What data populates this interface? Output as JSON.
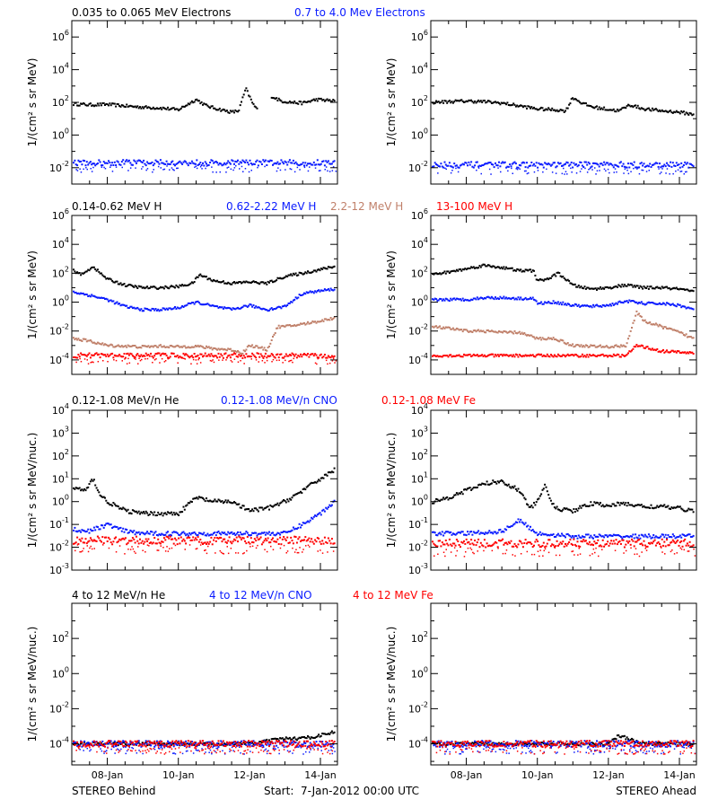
{
  "footer": {
    "left": "STEREO Behind",
    "center": "Start:  7-Jan-2012 00:00 UTC",
    "right": "STEREO Ahead"
  },
  "colors": {
    "black": "#000000",
    "blue": "#0a1bff",
    "tan": "#c0806a",
    "red": "#ff0000"
  },
  "x_axis": {
    "range": [
      0,
      7.48
    ],
    "ticks": [
      {
        "v": 1,
        "label": "08-Jan"
      },
      {
        "v": 3,
        "label": "10-Jan"
      },
      {
        "v": 5,
        "label": "12-Jan"
      },
      {
        "v": 7,
        "label": "14-Jan"
      }
    ]
  },
  "rows": [
    {
      "ylabel": "1/(cm² s sr MeV)",
      "yrange": [
        -3,
        7
      ],
      "yticks": [
        {
          "e": -2,
          "l": "-2"
        },
        {
          "e": 0,
          "l": "0"
        },
        {
          "e": 2,
          "l": "2"
        },
        {
          "e": 4,
          "l": "4"
        },
        {
          "e": 6,
          "l": "6"
        }
      ],
      "legend": [
        {
          "text": "0.035 to 0.065 MeV Electrons",
          "color": "#000000"
        },
        {
          "text": "0.7 to 4.0 Mev Electrons",
          "color": "#0a1bff"
        }
      ]
    },
    {
      "ylabel": "1/(cm² s sr MeV)",
      "yrange": [
        -5,
        6
      ],
      "yticks": [
        {
          "e": -4,
          "l": "-4"
        },
        {
          "e": -2,
          "l": "-2"
        },
        {
          "e": 0,
          "l": "0"
        },
        {
          "e": 2,
          "l": "2"
        },
        {
          "e": 4,
          "l": "4"
        },
        {
          "e": 6,
          "l": "6"
        }
      ],
      "legend": [
        {
          "text": "0.14-0.62 MeV H",
          "color": "#000000"
        },
        {
          "text": "0.62-2.22 MeV H",
          "color": "#0a1bff"
        },
        {
          "text": "2.2-12 MeV H",
          "color": "#c0806a"
        },
        {
          "text": "13-100 MeV H",
          "color": "#ff0000"
        }
      ]
    },
    {
      "ylabel": "1/(cm² s sr MeV/nuc.)",
      "yrange": [
        -3,
        4
      ],
      "yticks": [
        {
          "e": -3,
          "l": "-3"
        },
        {
          "e": -2,
          "l": "-2"
        },
        {
          "e": -1,
          "l": "-1"
        },
        {
          "e": 0,
          "l": "0"
        },
        {
          "e": 1,
          "l": "1"
        },
        {
          "e": 2,
          "l": "2"
        },
        {
          "e": 3,
          "l": "3"
        },
        {
          "e": 4,
          "l": "4"
        }
      ],
      "legend": [
        {
          "text": "0.12-1.08 MeV/n He",
          "color": "#000000"
        },
        {
          "text": "0.12-1.08 MeV/n CNO",
          "color": "#0a1bff"
        },
        {
          "text": "0.12-1.08 MeV Fe",
          "color": "#ff0000"
        }
      ]
    },
    {
      "ylabel": "1/(cm² s sr MeV/nuc.)",
      "yrange": [
        -5.2,
        4
      ],
      "yticks": [
        {
          "e": -4,
          "l": "-4"
        },
        {
          "e": -2,
          "l": "-2"
        },
        {
          "e": 0,
          "l": "0"
        },
        {
          "e": 2,
          "l": "2"
        }
      ],
      "legend": [
        {
          "text": "4 to 12 MeV/n He",
          "color": "#000000"
        },
        {
          "text": "4 to 12 MeV/n CNO",
          "color": "#0a1bff"
        },
        {
          "text": "4 to 12 MeV Fe",
          "color": "#ff0000"
        }
      ]
    }
  ],
  "chart_data": [
    {
      "type": "scatter",
      "spacecraft": "STEREO Behind",
      "ylog": true,
      "xlabel": "",
      "ylabel": "1/(cm² s sr MeV)",
      "ylim": [
        0.001,
        10000000
      ],
      "series": [
        {
          "name": "0.035 to 0.065 MeV Electrons",
          "color": "#000000",
          "x": [
            0.05,
            0.5,
            1.0,
            1.5,
            2.0,
            2.5,
            3.0,
            3.5,
            3.8,
            4.1,
            4.5,
            4.7,
            4.9,
            5.1,
            5.25,
            5.4,
            5.6,
            5.9,
            6.2,
            6.5,
            6.9,
            7.4
          ],
          "y": [
            80,
            70,
            75,
            60,
            50,
            45,
            35,
            150,
            60,
            40,
            25,
            30,
            700,
            80,
            30,
            null,
            250,
            120,
            100,
            90,
            150,
            120
          ]
        },
        {
          "name": "0.7 to 4.0 Mev Electrons",
          "color": "#0a1bff",
          "x": [
            0.05,
            1.0,
            2.0,
            3.0,
            4.0,
            5.0,
            6.0,
            7.4
          ],
          "y": [
            0.02,
            0.02,
            0.02,
            0.02,
            0.02,
            0.02,
            0.02,
            0.02
          ]
        }
      ]
    },
    {
      "type": "scatter",
      "spacecraft": "STEREO Ahead",
      "ylog": true,
      "xlabel": "",
      "ylabel": "1/(cm² s sr MeV)",
      "ylim": [
        0.001,
        10000000
      ],
      "series": [
        {
          "name": "0.035 to 0.065 MeV Electrons",
          "color": "#000000",
          "x": [
            0.05,
            0.5,
            1.0,
            1.5,
            2.0,
            2.5,
            3.0,
            3.5,
            3.8,
            4.0,
            4.3,
            4.6,
            4.9,
            5.3,
            5.6,
            6.0,
            6.5,
            7.0,
            7.4
          ],
          "y": [
            100,
            110,
            120,
            110,
            90,
            60,
            40,
            35,
            30,
            200,
            80,
            50,
            40,
            30,
            70,
            40,
            30,
            25,
            18
          ]
        },
        {
          "name": "0.7 to 4.0 Mev Electrons",
          "color": "#0a1bff",
          "x": [
            0.05,
            1.0,
            2.0,
            3.0,
            4.0,
            5.0,
            6.0,
            7.4
          ],
          "y": [
            0.015,
            0.015,
            0.015,
            0.015,
            0.015,
            0.015,
            0.015,
            0.015
          ]
        }
      ]
    },
    {
      "type": "scatter",
      "spacecraft": "STEREO Behind",
      "ylog": true,
      "xlabel": "",
      "ylabel": "1/(cm² s sr MeV)",
      "ylim": [
        1e-05,
        1000000
      ],
      "series": [
        {
          "name": "0.14-0.62 MeV H",
          "color": "#000000",
          "x": [
            0.05,
            0.3,
            0.6,
            0.8,
            1.0,
            1.5,
            2.0,
            2.5,
            3.0,
            3.4,
            3.6,
            4.0,
            4.5,
            5.0,
            5.5,
            6.0,
            6.5,
            7.0,
            7.4
          ],
          "y": [
            150,
            80,
            300,
            100,
            40,
            15,
            10,
            10,
            12,
            20,
            80,
            30,
            20,
            25,
            20,
            60,
            100,
            180,
            300
          ]
        },
        {
          "name": "0.62-2.22 MeV H",
          "color": "#0a1bff",
          "x": [
            0.05,
            0.5,
            1.0,
            1.5,
            2.0,
            2.5,
            3.0,
            3.5,
            4.0,
            4.5,
            5.0,
            5.5,
            6.0,
            6.5,
            7.0,
            7.4
          ],
          "y": [
            5,
            3,
            1.5,
            0.5,
            0.3,
            0.3,
            0.4,
            1.0,
            0.5,
            0.3,
            0.6,
            0.3,
            0.5,
            4,
            6,
            8
          ]
        },
        {
          "name": "2.2-12 MeV H",
          "color": "#c0806a",
          "x": [
            0.05,
            0.5,
            1.0,
            1.5,
            2.0,
            2.5,
            3.0,
            3.5,
            4.0,
            4.5,
            4.8,
            5.0,
            5.2,
            5.5,
            5.8,
            6.0,
            6.5,
            7.0,
            7.4
          ],
          "y": [
            0.003,
            0.002,
            0.001,
            0.0009,
            0.0008,
            0.0009,
            0.0008,
            0.0009,
            0.0006,
            0.0005,
            0.0003,
            0.001,
            0.0008,
            0.0005,
            0.02,
            0.02,
            0.03,
            0.05,
            0.08
          ]
        },
        {
          "name": "13-100 MeV H",
          "color": "#ff0000",
          "x": [
            0.05,
            1.0,
            2.0,
            3.0,
            4.0,
            5.0,
            6.0,
            7.4
          ],
          "y": [
            0.0002,
            0.0002,
            0.0002,
            0.0002,
            0.0002,
            0.0002,
            0.0002,
            0.0002
          ]
        }
      ]
    },
    {
      "type": "scatter",
      "spacecraft": "STEREO Ahead",
      "ylog": true,
      "xlabel": "",
      "ylabel": "1/(cm² s sr MeV)",
      "ylim": [
        1e-05,
        1000000
      ],
      "series": [
        {
          "name": "0.14-0.62 MeV H",
          "color": "#000000",
          "x": [
            0.05,
            0.5,
            1.0,
            1.5,
            2.0,
            2.5,
            2.9,
            3.0,
            3.3,
            3.6,
            4.0,
            4.5,
            5.0,
            5.5,
            6.0,
            6.5,
            7.0,
            7.4
          ],
          "y": [
            80,
            120,
            200,
            350,
            250,
            150,
            150,
            30,
            40,
            100,
            15,
            8,
            10,
            15,
            10,
            10,
            8,
            5
          ]
        },
        {
          "name": "0.62-2.22 MeV H",
          "color": "#0a1bff",
          "x": [
            0.05,
            0.5,
            1.0,
            1.5,
            2.0,
            2.5,
            2.9,
            3.0,
            3.5,
            4.0,
            4.5,
            5.0,
            5.5,
            6.0,
            6.5,
            7.0,
            7.4
          ],
          "y": [
            1.5,
            1.5,
            1.5,
            2,
            2,
            1.8,
            1.8,
            0.8,
            1.0,
            0.6,
            0.5,
            0.6,
            1.2,
            0.8,
            0.8,
            0.6,
            0.3
          ]
        },
        {
          "name": "2.2-12 MeV H",
          "color": "#c0806a",
          "x": [
            0.05,
            0.5,
            1.0,
            1.5,
            2.0,
            2.5,
            3.0,
            3.5,
            4.0,
            4.5,
            5.0,
            5.5,
            5.8,
            6.0,
            6.5,
            7.0,
            7.4
          ],
          "y": [
            0.02,
            0.015,
            0.01,
            0.01,
            0.008,
            0.008,
            0.003,
            0.003,
            0.001,
            0.0009,
            0.0008,
            0.001,
            0.2,
            0.05,
            0.02,
            0.008,
            0.003
          ]
        },
        {
          "name": "13-100 MeV H",
          "color": "#ff0000",
          "x": [
            0.05,
            1.0,
            2.0,
            3.0,
            4.0,
            5.0,
            5.5,
            5.8,
            6.0,
            6.5,
            7.4
          ],
          "y": [
            0.0002,
            0.0002,
            0.0002,
            0.0002,
            0.0002,
            0.0002,
            0.0002,
            0.001,
            0.0008,
            0.0004,
            0.0003
          ]
        }
      ]
    },
    {
      "type": "scatter",
      "spacecraft": "STEREO Behind",
      "ylog": true,
      "xlabel": "",
      "ylabel": "1/(cm² s sr MeV/nuc.)",
      "ylim": [
        0.001,
        10000
      ],
      "series": [
        {
          "name": "0.12-1.08 MeV/n He",
          "color": "#000000",
          "x": [
            0.05,
            0.4,
            0.6,
            0.8,
            1.0,
            1.5,
            2.0,
            2.5,
            3.0,
            3.5,
            4.0,
            4.5,
            5.0,
            5.5,
            6.0,
            6.5,
            7.0,
            7.4
          ],
          "y": [
            4,
            3,
            10,
            2,
            1,
            0.4,
            0.3,
            0.3,
            0.3,
            1.5,
            1.0,
            1.0,
            0.4,
            0.5,
            1.0,
            3,
            10,
            25
          ]
        },
        {
          "name": "0.12-1.08 MeV/n CNO",
          "color": "#0a1bff",
          "x": [
            0.05,
            0.5,
            1.0,
            1.5,
            2.0,
            3.0,
            4.0,
            5.0,
            6.0,
            6.5,
            7.0,
            7.4
          ],
          "y": [
            0.06,
            0.05,
            0.1,
            0.05,
            0.04,
            0.04,
            0.04,
            0.04,
            0.04,
            0.1,
            0.3,
            1.0
          ]
        },
        {
          "name": "0.12-1.08 MeV Fe",
          "color": "#ff0000",
          "x": [
            0.05,
            1.0,
            2.0,
            3.0,
            4.0,
            5.0,
            6.0,
            7.4
          ],
          "y": [
            0.02,
            0.02,
            0.02,
            0.02,
            0.02,
            0.02,
            0.02,
            0.02
          ]
        }
      ]
    },
    {
      "type": "scatter",
      "spacecraft": "STEREO Ahead",
      "ylog": true,
      "xlabel": "",
      "ylabel": "1/(cm² s sr MeV/nuc.)",
      "ylim": [
        0.001,
        10000
      ],
      "series": [
        {
          "name": "0.12-1.08 MeV/n He",
          "color": "#000000",
          "x": [
            0.05,
            0.5,
            1.0,
            1.5,
            2.0,
            2.5,
            2.8,
            3.0,
            3.2,
            3.5,
            4.0,
            4.5,
            5.0,
            5.5,
            6.0,
            6.5,
            7.0,
            7.4
          ],
          "y": [
            1.0,
            1.5,
            3,
            6,
            8,
            3,
            0.5,
            1.0,
            5,
            0.5,
            0.4,
            0.8,
            0.7,
            0.8,
            0.6,
            0.6,
            0.5,
            0.4
          ]
        },
        {
          "name": "0.12-1.08 MeV/n CNO",
          "color": "#0a1bff",
          "x": [
            0.05,
            1.0,
            2.0,
            2.5,
            3.0,
            4.0,
            5.0,
            6.0,
            7.4
          ],
          "y": [
            0.04,
            0.04,
            0.05,
            0.15,
            0.04,
            0.03,
            0.03,
            0.03,
            0.03
          ]
        },
        {
          "name": "0.12-1.08 MeV Fe",
          "color": "#ff0000",
          "x": [
            0.05,
            1.0,
            2.0,
            3.0,
            4.0,
            5.0,
            6.0,
            7.4
          ],
          "y": [
            0.015,
            0.015,
            0.015,
            0.015,
            0.015,
            0.015,
            0.015,
            0.015
          ]
        }
      ]
    },
    {
      "type": "scatter",
      "spacecraft": "STEREO Behind",
      "ylog": true,
      "xlabel": "",
      "ylabel": "1/(cm² s sr MeV/nuc.)",
      "ylim": [
        6.3e-06,
        10000
      ],
      "series": [
        {
          "name": "4 to 12 MeV/n He",
          "color": "#000000",
          "x": [
            0.05,
            1.0,
            2.0,
            3.0,
            4.0,
            5.0,
            6.0,
            6.5,
            7.0,
            7.4
          ],
          "y": [
            0.0001,
            0.0001,
            0.0001,
            0.0001,
            0.0001,
            0.0001,
            0.0002,
            0.0002,
            0.0003,
            0.0005
          ]
        },
        {
          "name": "4 to 12 MeV/n CNO",
          "color": "#0a1bff",
          "x": [
            0.05,
            2.0,
            4.0,
            6.0,
            7.4
          ],
          "y": [
            0.0001,
            0.0001,
            0.0001,
            0.0001,
            0.0001
          ]
        },
        {
          "name": "4 to 12 MeV Fe",
          "color": "#ff0000",
          "x": [
            0.05,
            2.0,
            4.0,
            6.0,
            7.4
          ],
          "y": [
            0.0001,
            0.0001,
            0.0001,
            0.0001,
            0.0001
          ]
        }
      ]
    },
    {
      "type": "scatter",
      "spacecraft": "STEREO Ahead",
      "ylog": true,
      "xlabel": "",
      "ylabel": "1/(cm² s sr MeV/nuc.)",
      "ylim": [
        6.3e-06,
        10000
      ],
      "series": [
        {
          "name": "4 to 12 MeV/n He",
          "color": "#000000",
          "x": [
            0.05,
            1.0,
            2.0,
            3.0,
            4.0,
            5.0,
            5.3,
            6.0,
            7.4
          ],
          "y": [
            0.0001,
            0.0001,
            0.0001,
            0.0001,
            0.0001,
            0.0001,
            0.0003,
            0.0001,
            0.0001
          ]
        },
        {
          "name": "4 to 12 MeV/n CNO",
          "color": "#0a1bff",
          "x": [
            0.05,
            2.0,
            4.0,
            6.0,
            7.4
          ],
          "y": [
            0.0001,
            0.0001,
            0.0001,
            0.0001,
            0.0001
          ]
        },
        {
          "name": "4 to 12 MeV Fe",
          "color": "#ff0000",
          "x": [
            0.05,
            2.0,
            4.0,
            6.0,
            7.4
          ],
          "y": [
            0.0001,
            0.0001,
            0.0001,
            0.0001,
            0.0001
          ]
        }
      ]
    }
  ]
}
